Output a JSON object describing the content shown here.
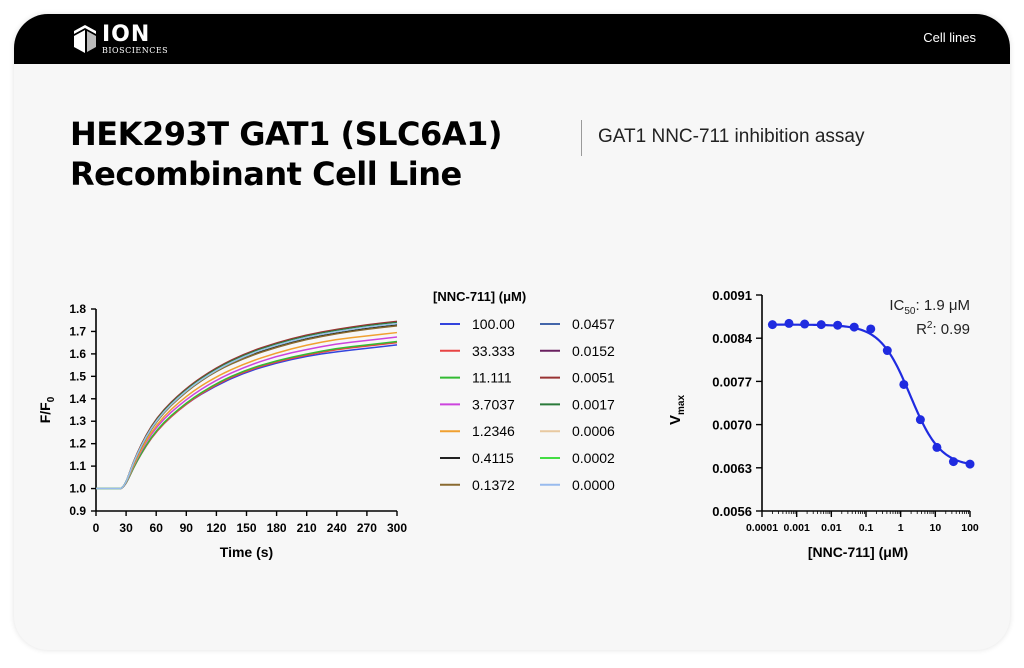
{
  "header": {
    "logo_name": "ION",
    "logo_sub": "BIOSCIENCES",
    "nav_link": "Cell lines"
  },
  "page": {
    "title_line1": "HEK293T GAT1 (SLC6A1)",
    "title_line2": "Recombinant Cell Line",
    "subtitle": "GAT1 NNC-711 inhibition assay"
  },
  "chart_data": [
    {
      "type": "line",
      "title": "",
      "xlabel": "Time (s)",
      "ylabel": "F/F0",
      "ylabel_main": "F/F",
      "ylabel_sub": "0",
      "xlim": [
        0,
        300
      ],
      "ylim": [
        0.9,
        1.8
      ],
      "xticks": [
        0,
        30,
        60,
        90,
        120,
        150,
        180,
        210,
        240,
        270,
        300
      ],
      "yticks": [
        "0.9",
        "1.0",
        "1.1",
        "1.2",
        "1.3",
        "1.4",
        "1.5",
        "1.6",
        "1.7",
        "1.8"
      ],
      "grid": false,
      "legend_title": "[NNC-711] (μM)",
      "legend_position": "right",
      "x": [
        0,
        10,
        20,
        28,
        40,
        60,
        90,
        120,
        150,
        180,
        210,
        240,
        270,
        300
      ],
      "series": [
        {
          "name": "100.00",
          "color": "#3344dd",
          "values": [
            1.0,
            1.0,
            1.0,
            1.0,
            1.12,
            1.26,
            1.38,
            1.46,
            1.52,
            1.56,
            1.59,
            1.61,
            1.625,
            1.64
          ]
        },
        {
          "name": "33.333",
          "color": "#e84444",
          "values": [
            1.0,
            1.0,
            1.0,
            1.0,
            1.12,
            1.26,
            1.38,
            1.465,
            1.525,
            1.565,
            1.595,
            1.62,
            1.635,
            1.65
          ]
        },
        {
          "name": "11.111",
          "color": "#33bb33",
          "values": [
            1.0,
            1.0,
            1.0,
            1.0,
            1.12,
            1.265,
            1.385,
            1.47,
            1.53,
            1.57,
            1.6,
            1.625,
            1.64,
            1.655
          ]
        },
        {
          "name": "3.7037",
          "color": "#cc44dd",
          "values": [
            1.0,
            1.0,
            1.0,
            1.0,
            1.13,
            1.28,
            1.4,
            1.485,
            1.545,
            1.59,
            1.62,
            1.645,
            1.66,
            1.675
          ]
        },
        {
          "name": "1.2346",
          "color": "#f0a030",
          "values": [
            1.0,
            1.0,
            1.0,
            1.0,
            1.135,
            1.29,
            1.415,
            1.5,
            1.56,
            1.605,
            1.64,
            1.665,
            1.68,
            1.695
          ]
        },
        {
          "name": "0.4115",
          "color": "#222222",
          "values": [
            1.0,
            1.0,
            1.0,
            1.0,
            1.15,
            1.31,
            1.44,
            1.53,
            1.59,
            1.635,
            1.67,
            1.695,
            1.715,
            1.73
          ]
        },
        {
          "name": "0.1372",
          "color": "#8a6a30",
          "values": [
            1.0,
            1.0,
            1.0,
            1.0,
            1.145,
            1.305,
            1.435,
            1.525,
            1.585,
            1.63,
            1.665,
            1.69,
            1.71,
            1.725
          ]
        },
        {
          "name": "0.0457",
          "color": "#4466aa",
          "values": [
            1.0,
            1.0,
            1.0,
            1.0,
            1.15,
            1.31,
            1.44,
            1.53,
            1.595,
            1.64,
            1.675,
            1.7,
            1.72,
            1.735
          ]
        },
        {
          "name": "0.0152",
          "color": "#6a2060",
          "values": [
            1.0,
            1.0,
            1.0,
            1.0,
            1.155,
            1.315,
            1.445,
            1.535,
            1.6,
            1.645,
            1.68,
            1.705,
            1.725,
            1.74
          ]
        },
        {
          "name": "0.0051",
          "color": "#993333",
          "values": [
            1.0,
            1.0,
            1.0,
            1.0,
            1.155,
            1.32,
            1.45,
            1.54,
            1.605,
            1.65,
            1.685,
            1.71,
            1.73,
            1.745
          ]
        },
        {
          "name": "0.0017",
          "color": "#2a7a3a",
          "values": [
            1.0,
            1.0,
            1.0,
            1.0,
            1.15,
            1.315,
            1.445,
            1.535,
            1.6,
            1.645,
            1.68,
            1.705,
            1.725,
            1.74
          ]
        },
        {
          "name": "0.0006",
          "color": "#e8c9a0",
          "values": [
            1.0,
            1.0,
            1.0,
            1.0,
            1.15,
            1.31,
            1.44,
            1.53,
            1.595,
            1.64,
            1.675,
            1.7,
            1.72,
            1.735
          ]
        },
        {
          "name": "0.0002",
          "color": "#44dd44",
          "values": [
            1.0,
            1.0,
            1.0,
            1.0,
            1.15,
            1.31,
            1.44,
            1.53,
            1.595,
            1.64,
            1.675,
            1.7,
            1.72,
            1.735
          ]
        },
        {
          "name": "0.0000",
          "color": "#99bbee",
          "values": [
            1.0,
            1.0,
            1.0,
            1.0,
            1.15,
            1.31,
            1.44,
            1.53,
            1.595,
            1.64,
            1.675,
            1.7,
            1.72,
            1.735
          ]
        }
      ]
    },
    {
      "type": "scatter",
      "title": "",
      "xlabel": "[NNC-711] (μM)",
      "ylabel": "Vmax",
      "ylabel_main": "V",
      "ylabel_sub": "max",
      "xscale": "log",
      "xlim": [
        0.0001,
        100
      ],
      "ylim": [
        0.0056,
        0.0091
      ],
      "xticks": [
        "0.0001",
        "0.001",
        "0.01",
        "0.1",
        "1",
        "10",
        "100"
      ],
      "yticks": [
        "0.0056",
        "0.0063",
        "0.0070",
        "0.0077",
        "0.0084",
        "0.0091"
      ],
      "grid": false,
      "color": "#1f2be0",
      "x": [
        0.0002,
        0.0006,
        0.0017,
        0.0051,
        0.0152,
        0.0457,
        0.1372,
        0.4115,
        1.2346,
        3.7037,
        11.111,
        33.333,
        100.0
      ],
      "y": [
        0.00862,
        0.00864,
        0.00863,
        0.00862,
        0.00861,
        0.00858,
        0.00855,
        0.0082,
        0.00765,
        0.00708,
        0.00663,
        0.0064,
        0.00636
      ],
      "fit": {
        "top": 0.00862,
        "bottom": 0.00632,
        "log_ic50": 0.2788,
        "hill": 1.0
      },
      "annotation_ic50_main": "IC",
      "annotation_ic50_sub": "50",
      "annotation_ic50_value": ": 1.9 μM",
      "annotation_r2_main": "R",
      "annotation_r2_sup": "2",
      "annotation_r2_value": ": 0.99"
    }
  ]
}
